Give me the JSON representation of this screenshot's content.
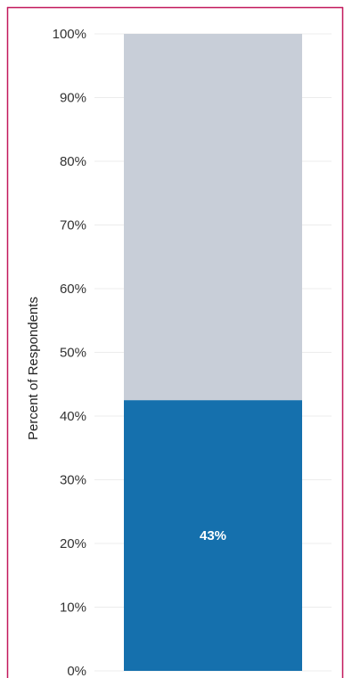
{
  "chart_data": {
    "type": "bar",
    "stacked": true,
    "percent_scale": true,
    "categories": [
      ""
    ],
    "series": [
      {
        "values": [
          42.5
        ],
        "color": "#1570ad",
        "label": "43%"
      },
      {
        "values": [
          57.5
        ],
        "color": "#c8ced8"
      }
    ],
    "ylabel": "Percent of Respondents",
    "ylim": [
      0,
      100
    ],
    "ytick_values": [
      0,
      10,
      20,
      30,
      40,
      50,
      60,
      70,
      80,
      90,
      100
    ],
    "yticks": [
      "0%",
      "10%",
      "20%",
      "30%",
      "40%",
      "50%",
      "60%",
      "70%",
      "80%",
      "90%",
      "100%"
    ],
    "grid": true,
    "legend": "none"
  },
  "colors": {
    "frame_border": "#c2185b",
    "gridline": "#ececec"
  }
}
